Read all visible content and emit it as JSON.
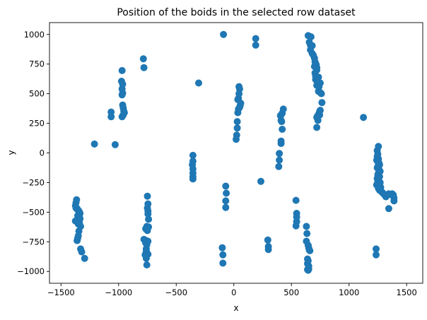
{
  "chart_data": {
    "type": "scatter",
    "title": "Position of the boids in the selected row dataset",
    "xlabel": "x",
    "ylabel": "y",
    "xlim": [
      -1600,
      1640
    ],
    "ylim": [
      -1100,
      1100
    ],
    "xticks": [
      -1500,
      -1000,
      -500,
      0,
      500,
      1000,
      1500
    ],
    "yticks": [
      -1000,
      -750,
      -500,
      -250,
      0,
      250,
      500,
      750,
      1000
    ],
    "grid": false,
    "marker_color": "#1f77b4",
    "points": [
      [
        -1365,
        -395
      ],
      [
        -1370,
        -420
      ],
      [
        -1375,
        -445
      ],
      [
        -1370,
        -465
      ],
      [
        -1360,
        -470
      ],
      [
        -1355,
        -480
      ],
      [
        -1345,
        -490
      ],
      [
        -1340,
        -500
      ],
      [
        -1335,
        -510
      ],
      [
        -1345,
        -520
      ],
      [
        -1355,
        -530
      ],
      [
        -1340,
        -540
      ],
      [
        -1335,
        -555
      ],
      [
        -1345,
        -565
      ],
      [
        -1360,
        -570
      ],
      [
        -1375,
        -575
      ],
      [
        -1340,
        -590
      ],
      [
        -1350,
        -600
      ],
      [
        -1330,
        -620
      ],
      [
        -1345,
        -660
      ],
      [
        -1350,
        -700
      ],
      [
        -1355,
        -720
      ],
      [
        -1360,
        -740
      ],
      [
        -1330,
        -810
      ],
      [
        -1320,
        -835
      ],
      [
        -1295,
        -890
      ],
      [
        -1210,
        75
      ],
      [
        -1030,
        70
      ],
      [
        -1065,
        345
      ],
      [
        -1065,
        305
      ],
      [
        -970,
        695
      ],
      [
        -975,
        605
      ],
      [
        -965,
        580
      ],
      [
        -970,
        540
      ],
      [
        -965,
        505
      ],
      [
        -970,
        490
      ],
      [
        -965,
        405
      ],
      [
        -960,
        380
      ],
      [
        -955,
        355
      ],
      [
        -950,
        340
      ],
      [
        -960,
        320
      ],
      [
        -970,
        305
      ],
      [
        -785,
        795
      ],
      [
        -780,
        720
      ],
      [
        -750,
        -365
      ],
      [
        -745,
        -430
      ],
      [
        -750,
        -465
      ],
      [
        -745,
        -490
      ],
      [
        -745,
        -515
      ],
      [
        -740,
        -560
      ],
      [
        -755,
        -620
      ],
      [
        -740,
        -625
      ],
      [
        -765,
        -640
      ],
      [
        -750,
        -655
      ],
      [
        -780,
        -730
      ],
      [
        -760,
        -740
      ],
      [
        -745,
        -745
      ],
      [
        -765,
        -760
      ],
      [
        -755,
        -775
      ],
      [
        -760,
        -810
      ],
      [
        -760,
        -825
      ],
      [
        -760,
        -835
      ],
      [
        -755,
        -850
      ],
      [
        -745,
        -855
      ],
      [
        -770,
        -860
      ],
      [
        -760,
        -890
      ],
      [
        -755,
        -945
      ],
      [
        -305,
        590
      ],
      [
        -355,
        -20
      ],
      [
        -355,
        -70
      ],
      [
        -360,
        -100
      ],
      [
        -355,
        -135
      ],
      [
        -355,
        -170
      ],
      [
        -355,
        -200
      ],
      [
        -355,
        -220
      ],
      [
        -90,
        1000
      ],
      [
        -70,
        -280
      ],
      [
        -65,
        -340
      ],
      [
        -70,
        -405
      ],
      [
        -70,
        -460
      ],
      [
        -100,
        -800
      ],
      [
        -95,
        -860
      ],
      [
        -95,
        -930
      ],
      [
        45,
        560
      ],
      [
        50,
        540
      ],
      [
        45,
        500
      ],
      [
        40,
        460
      ],
      [
        35,
        450
      ],
      [
        60,
        420
      ],
      [
        55,
        400
      ],
      [
        50,
        385
      ],
      [
        40,
        370
      ],
      [
        35,
        340
      ],
      [
        30,
        265
      ],
      [
        30,
        210
      ],
      [
        25,
        150
      ],
      [
        20,
        115
      ],
      [
        190,
        965
      ],
      [
        190,
        910
      ],
      [
        235,
        -240
      ],
      [
        295,
        -735
      ],
      [
        300,
        -790
      ],
      [
        300,
        -815
      ],
      [
        430,
        370
      ],
      [
        420,
        335
      ],
      [
        410,
        320
      ],
      [
        405,
        315
      ],
      [
        410,
        275
      ],
      [
        415,
        265
      ],
      [
        420,
        200
      ],
      [
        410,
        100
      ],
      [
        410,
        80
      ],
      [
        395,
        -5
      ],
      [
        395,
        -60
      ],
      [
        390,
        -115
      ],
      [
        540,
        -400
      ],
      [
        545,
        -510
      ],
      [
        545,
        -540
      ],
      [
        545,
        -580
      ],
      [
        540,
        -615
      ],
      [
        645,
        990
      ],
      [
        670,
        980
      ],
      [
        655,
        935
      ],
      [
        665,
        910
      ],
      [
        680,
        905
      ],
      [
        665,
        870
      ],
      [
        680,
        840
      ],
      [
        690,
        825
      ],
      [
        700,
        800
      ],
      [
        705,
        770
      ],
      [
        710,
        755
      ],
      [
        715,
        745
      ],
      [
        700,
        730
      ],
      [
        720,
        720
      ],
      [
        720,
        700
      ],
      [
        705,
        675
      ],
      [
        710,
        650
      ],
      [
        725,
        640
      ],
      [
        735,
        640
      ],
      [
        710,
        620
      ],
      [
        725,
        600
      ],
      [
        730,
        590
      ],
      [
        750,
        590
      ],
      [
        720,
        570
      ],
      [
        740,
        560
      ],
      [
        735,
        520
      ],
      [
        750,
        510
      ],
      [
        760,
        500
      ],
      [
        765,
        425
      ],
      [
        750,
        360
      ],
      [
        745,
        350
      ],
      [
        735,
        325
      ],
      [
        745,
        320
      ],
      [
        725,
        310
      ],
      [
        720,
        300
      ],
      [
        730,
        275
      ],
      [
        720,
        215
      ],
      [
        630,
        -620
      ],
      [
        635,
        -680
      ],
      [
        630,
        -745
      ],
      [
        645,
        -780
      ],
      [
        650,
        -800
      ],
      [
        655,
        -820
      ],
      [
        660,
        -825
      ],
      [
        640,
        -895
      ],
      [
        645,
        -910
      ],
      [
        640,
        -935
      ],
      [
        650,
        -955
      ],
      [
        650,
        -980
      ],
      [
        640,
        -985
      ],
      [
        645,
        -990
      ],
      [
        1125,
        300
      ],
      [
        1255,
        55
      ],
      [
        1245,
        20
      ],
      [
        1250,
        -10
      ],
      [
        1245,
        -30
      ],
      [
        1255,
        -50
      ],
      [
        1240,
        -60
      ],
      [
        1250,
        -75
      ],
      [
        1260,
        -85
      ],
      [
        1265,
        -100
      ],
      [
        1250,
        -115
      ],
      [
        1245,
        -125
      ],
      [
        1260,
        -140
      ],
      [
        1270,
        -155
      ],
      [
        1255,
        -170
      ],
      [
        1250,
        -185
      ],
      [
        1260,
        -195
      ],
      [
        1265,
        -200
      ],
      [
        1245,
        -215
      ],
      [
        1255,
        -225
      ],
      [
        1250,
        -240
      ],
      [
        1270,
        -250
      ],
      [
        1245,
        -265
      ],
      [
        1240,
        -270
      ],
      [
        1260,
        -280
      ],
      [
        1275,
        -290
      ],
      [
        1255,
        -300
      ],
      [
        1265,
        -315
      ],
      [
        1280,
        -325
      ],
      [
        1290,
        -335
      ],
      [
        1300,
        -345
      ],
      [
        1310,
        -355
      ],
      [
        1320,
        -370
      ],
      [
        1345,
        -345
      ],
      [
        1360,
        -350
      ],
      [
        1375,
        -345
      ],
      [
        1385,
        -355
      ],
      [
        1390,
        -380
      ],
      [
        1390,
        -405
      ],
      [
        1345,
        -470
      ],
      [
        1235,
        -810
      ],
      [
        1235,
        -860
      ]
    ]
  }
}
